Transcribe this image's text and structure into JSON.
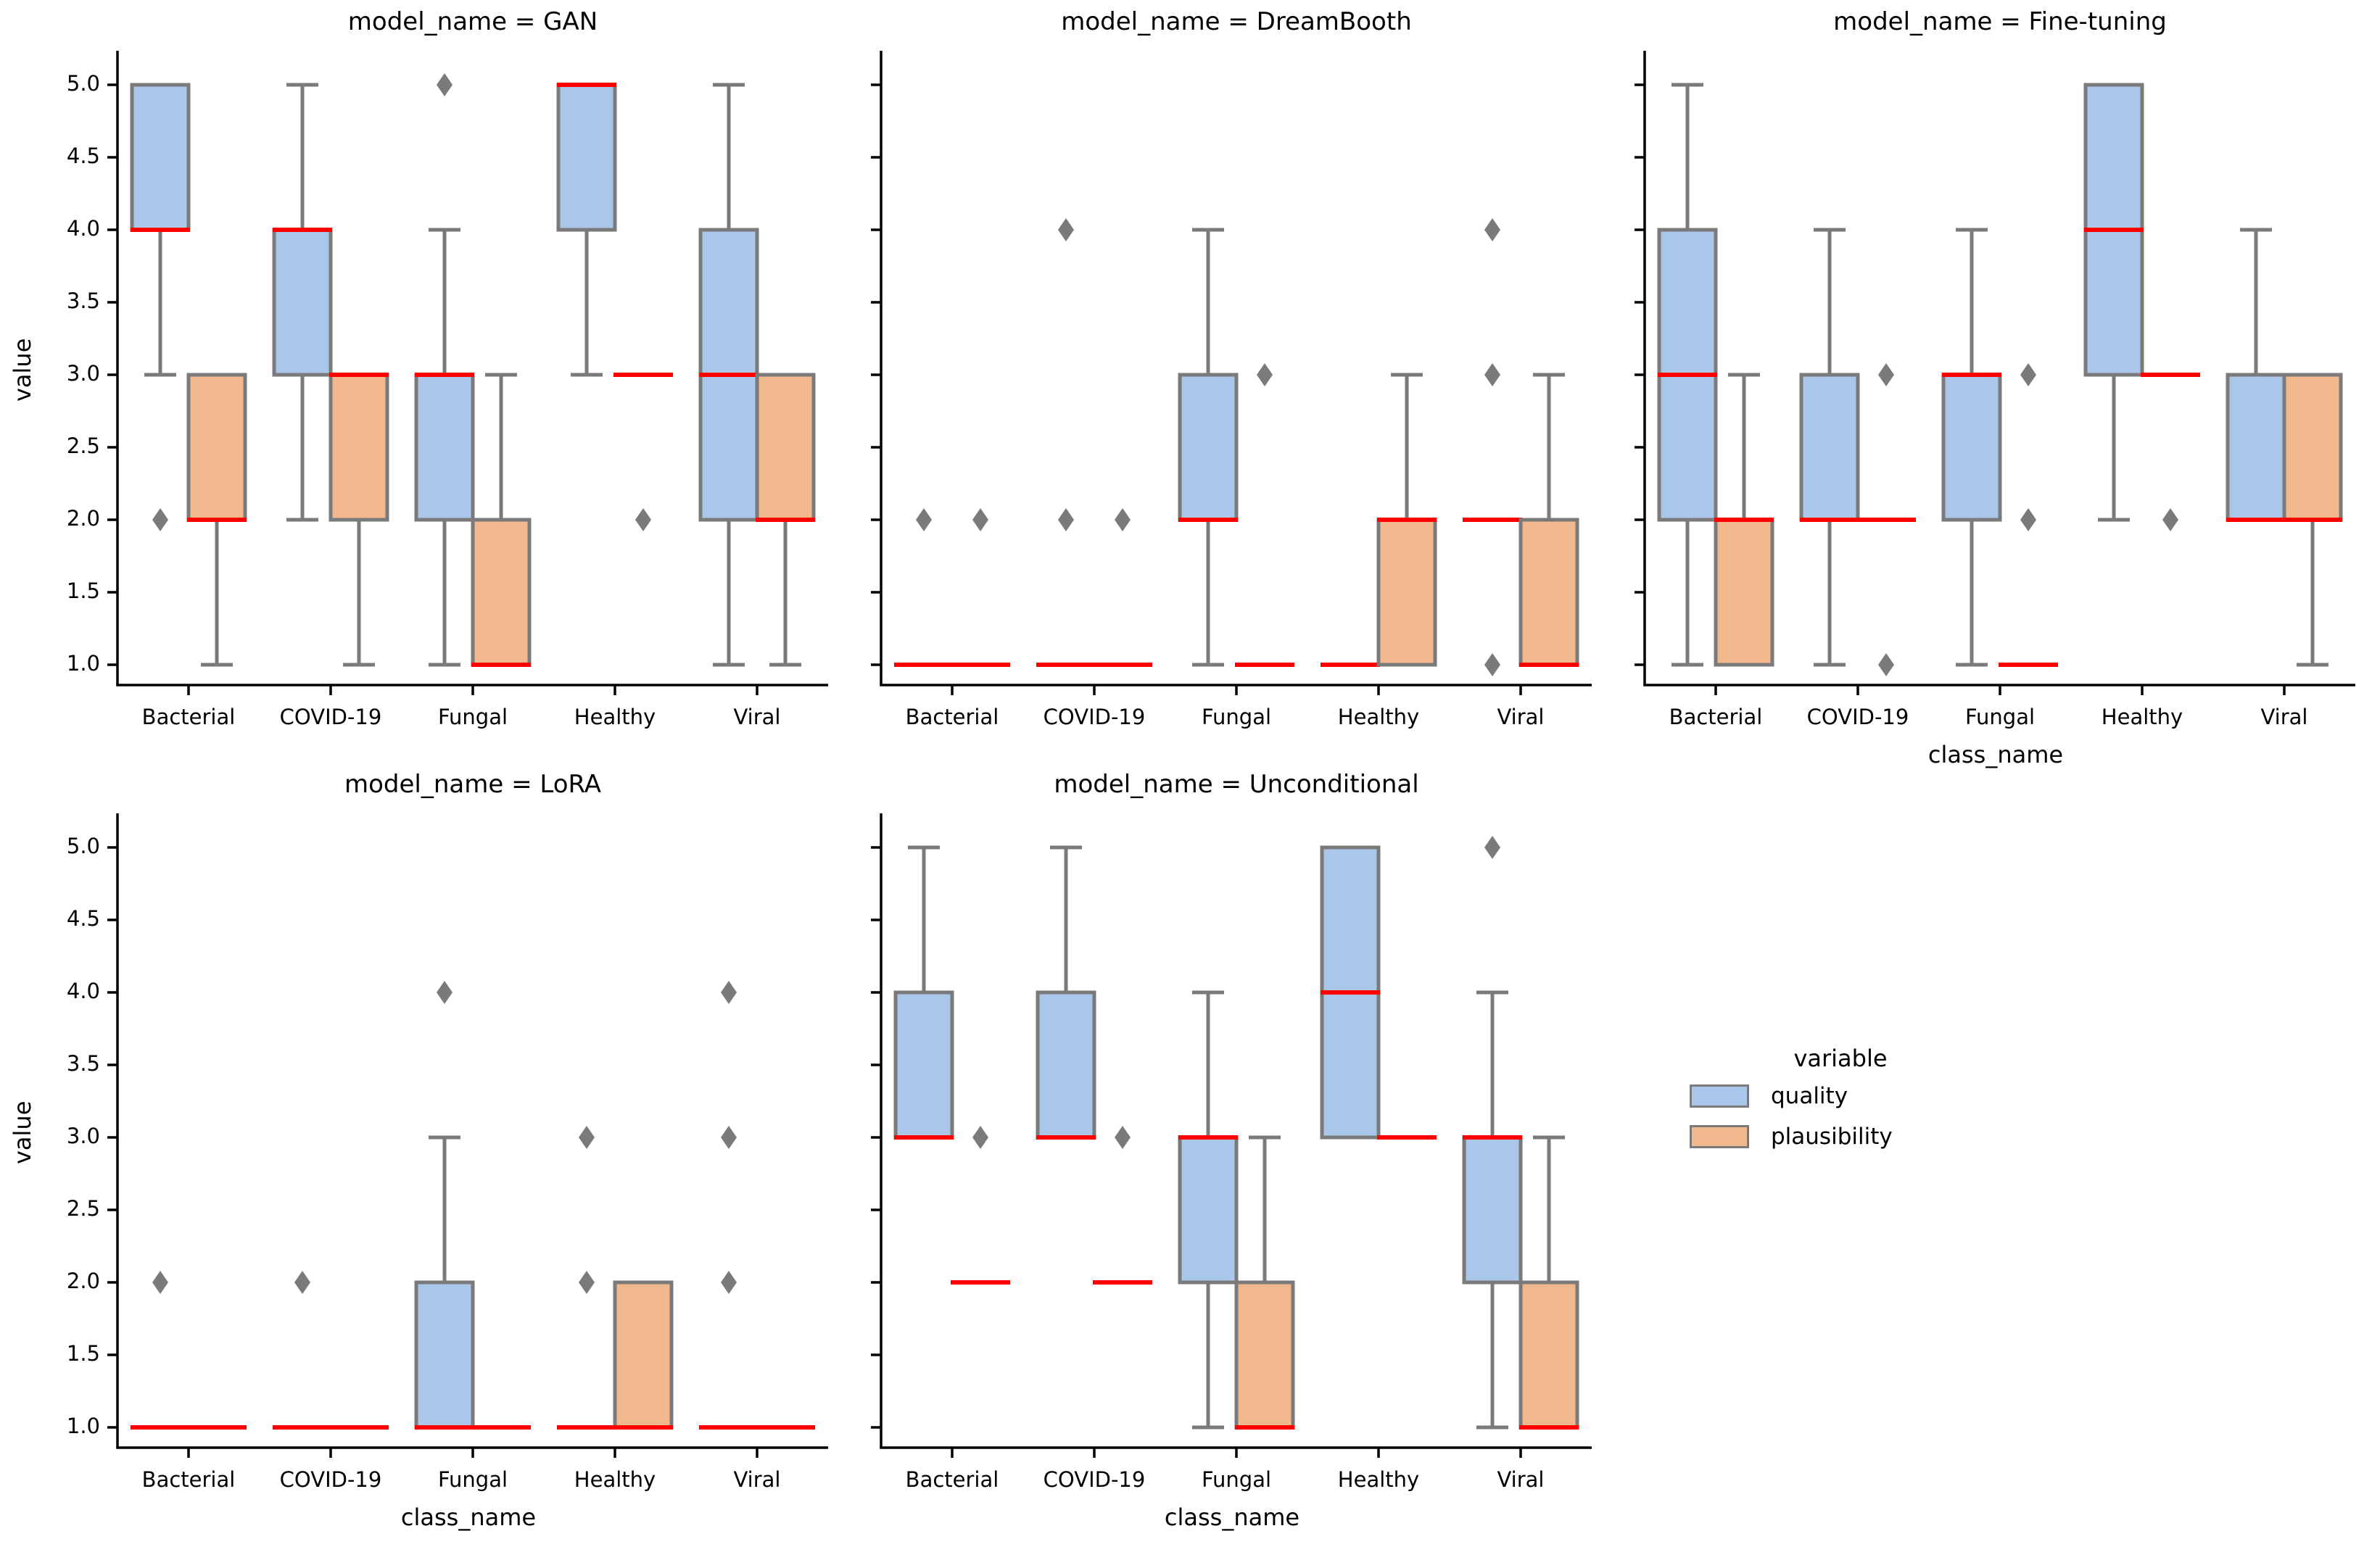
{
  "figure": {
    "ylabel": "value",
    "xlabel": "class_name",
    "categories": [
      "Bacterial",
      "COVID-19",
      "Fungal",
      "Healthy",
      "Viral"
    ],
    "ytick_labels": [
      "5.0",
      "4.5",
      "4.0",
      "3.5",
      "3.0",
      "2.5",
      "2.0",
      "1.5",
      "1.0"
    ],
    "ylim": [
      1,
      5
    ],
    "colors": {
      "quality": "#aac7e9",
      "plausibility": "#f1b88e",
      "median": "#ff0000",
      "box_edge": "#7a7a7a",
      "whisker": "#7a7a7a",
      "flier": "#7a7a7a",
      "spine": "#000000"
    },
    "legend": {
      "title": "variable",
      "entries": [
        {
          "label": "quality",
          "color": "#aac7e9"
        },
        {
          "label": "plausibility",
          "color": "#f1b88e"
        }
      ]
    }
  },
  "chart_data": [
    {
      "type": "grouped_boxplot",
      "title": "model_name = GAN",
      "grid": {
        "row": 0,
        "col": 0,
        "yticklabels": true,
        "xlabel": false
      },
      "categories": [
        "Bacterial",
        "COVID-19",
        "Fungal",
        "Healthy",
        "Viral"
      ],
      "series": [
        {
          "name": "quality",
          "color": "#aac7e9",
          "boxes": [
            {
              "q1": 4,
              "median": 4,
              "q3": 5,
              "whisker_low": 3,
              "whisker_high": 5,
              "fliers": [
                2
              ]
            },
            {
              "q1": 3,
              "median": 4,
              "q3": 4,
              "whisker_low": 2,
              "whisker_high": 5,
              "fliers": []
            },
            {
              "q1": 2,
              "median": 3,
              "q3": 3,
              "whisker_low": 1,
              "whisker_high": 4,
              "fliers": [
                5
              ]
            },
            {
              "q1": 4,
              "median": 5,
              "q3": 5,
              "whisker_low": 3,
              "whisker_high": 5,
              "fliers": []
            },
            {
              "q1": 2,
              "median": 3,
              "q3": 4,
              "whisker_low": 1,
              "whisker_high": 5,
              "fliers": []
            }
          ]
        },
        {
          "name": "plausibility",
          "color": "#f1b88e",
          "boxes": [
            {
              "q1": 2,
              "median": 2,
              "q3": 3,
              "whisker_low": 1,
              "whisker_high": 3,
              "fliers": []
            },
            {
              "q1": 2,
              "median": 3,
              "q3": 3,
              "whisker_low": 1,
              "whisker_high": 3,
              "fliers": []
            },
            {
              "q1": 1,
              "median": 1,
              "q3": 2,
              "whisker_low": 1,
              "whisker_high": 3,
              "fliers": []
            },
            {
              "q1": 3,
              "median": 3,
              "q3": 3,
              "whisker_low": 3,
              "whisker_high": 3,
              "fliers": [
                2
              ]
            },
            {
              "q1": 2,
              "median": 2,
              "q3": 3,
              "whisker_low": 1,
              "whisker_high": 3,
              "fliers": []
            }
          ]
        }
      ]
    },
    {
      "type": "grouped_boxplot",
      "title": "model_name = DreamBooth",
      "grid": {
        "row": 0,
        "col": 1,
        "yticklabels": false,
        "xlabel": false
      },
      "categories": [
        "Bacterial",
        "COVID-19",
        "Fungal",
        "Healthy",
        "Viral"
      ],
      "series": [
        {
          "name": "quality",
          "color": "#aac7e9",
          "boxes": [
            {
              "q1": 1,
              "median": 1,
              "q3": 1,
              "whisker_low": 1,
              "whisker_high": 1,
              "fliers": [
                2
              ]
            },
            {
              "q1": 1,
              "median": 1,
              "q3": 1,
              "whisker_low": 1,
              "whisker_high": 1,
              "fliers": [
                2,
                4
              ]
            },
            {
              "q1": 2,
              "median": 2,
              "q3": 3,
              "whisker_low": 1,
              "whisker_high": 4,
              "fliers": []
            },
            {
              "q1": 1,
              "median": 1,
              "q3": 1,
              "whisker_low": 1,
              "whisker_high": 1,
              "fliers": []
            },
            {
              "q1": 2,
              "median": 2,
              "q3": 2,
              "whisker_low": 2,
              "whisker_high": 2,
              "fliers": [
                1,
                3,
                4
              ]
            }
          ]
        },
        {
          "name": "plausibility",
          "color": "#f1b88e",
          "boxes": [
            {
              "q1": 1,
              "median": 1,
              "q3": 1,
              "whisker_low": 1,
              "whisker_high": 1,
              "fliers": [
                2
              ]
            },
            {
              "q1": 1,
              "median": 1,
              "q3": 1,
              "whisker_low": 1,
              "whisker_high": 1,
              "fliers": [
                2
              ]
            },
            {
              "q1": 1,
              "median": 1,
              "q3": 1,
              "whisker_low": 1,
              "whisker_high": 1,
              "fliers": [
                3
              ]
            },
            {
              "q1": 1,
              "median": 2,
              "q3": 2,
              "whisker_low": 1,
              "whisker_high": 3,
              "fliers": []
            },
            {
              "q1": 1,
              "median": 1,
              "q3": 2,
              "whisker_low": 1,
              "whisker_high": 3,
              "fliers": []
            }
          ]
        }
      ]
    },
    {
      "type": "grouped_boxplot",
      "title": "model_name = Fine-tuning",
      "grid": {
        "row": 0,
        "col": 2,
        "yticklabels": false,
        "xlabel": true
      },
      "categories": [
        "Bacterial",
        "COVID-19",
        "Fungal",
        "Healthy",
        "Viral"
      ],
      "series": [
        {
          "name": "quality",
          "color": "#aac7e9",
          "boxes": [
            {
              "q1": 2,
              "median": 3,
              "q3": 4,
              "whisker_low": 1,
              "whisker_high": 5,
              "fliers": []
            },
            {
              "q1": 2,
              "median": 2,
              "q3": 3,
              "whisker_low": 1,
              "whisker_high": 4,
              "fliers": []
            },
            {
              "q1": 2,
              "median": 3,
              "q3": 3,
              "whisker_low": 1,
              "whisker_high": 4,
              "fliers": []
            },
            {
              "q1": 3,
              "median": 4,
              "q3": 5,
              "whisker_low": 2,
              "whisker_high": 5,
              "fliers": []
            },
            {
              "q1": 2,
              "median": 2,
              "q3": 3,
              "whisker_low": 2,
              "whisker_high": 4,
              "fliers": []
            }
          ]
        },
        {
          "name": "plausibility",
          "color": "#f1b88e",
          "boxes": [
            {
              "q1": 1,
              "median": 2,
              "q3": 2,
              "whisker_low": 1,
              "whisker_high": 3,
              "fliers": []
            },
            {
              "q1": 2,
              "median": 2,
              "q3": 2,
              "whisker_low": 2,
              "whisker_high": 2,
              "fliers": [
                1,
                3
              ]
            },
            {
              "q1": 1,
              "median": 1,
              "q3": 1,
              "whisker_low": 1,
              "whisker_high": 1,
              "fliers": [
                2,
                3
              ]
            },
            {
              "q1": 3,
              "median": 3,
              "q3": 3,
              "whisker_low": 3,
              "whisker_high": 3,
              "fliers": [
                2
              ]
            },
            {
              "q1": 2,
              "median": 2,
              "q3": 3,
              "whisker_low": 1,
              "whisker_high": 3,
              "fliers": []
            }
          ]
        }
      ]
    },
    {
      "type": "grouped_boxplot",
      "title": "model_name = LoRA",
      "grid": {
        "row": 1,
        "col": 0,
        "yticklabels": true,
        "xlabel": true
      },
      "categories": [
        "Bacterial",
        "COVID-19",
        "Fungal",
        "Healthy",
        "Viral"
      ],
      "series": [
        {
          "name": "quality",
          "color": "#aac7e9",
          "boxes": [
            {
              "q1": 1,
              "median": 1,
              "q3": 1,
              "whisker_low": 1,
              "whisker_high": 1,
              "fliers": [
                2
              ]
            },
            {
              "q1": 1,
              "median": 1,
              "q3": 1,
              "whisker_low": 1,
              "whisker_high": 1,
              "fliers": [
                2
              ]
            },
            {
              "q1": 1,
              "median": 1,
              "q3": 2,
              "whisker_low": 1,
              "whisker_high": 3,
              "fliers": [
                4
              ]
            },
            {
              "q1": 1,
              "median": 1,
              "q3": 1,
              "whisker_low": 1,
              "whisker_high": 1,
              "fliers": [
                2,
                3
              ]
            },
            {
              "q1": 1,
              "median": 1,
              "q3": 1,
              "whisker_low": 1,
              "whisker_high": 1,
              "fliers": [
                2,
                3,
                4
              ]
            }
          ]
        },
        {
          "name": "plausibility",
          "color": "#f1b88e",
          "boxes": [
            {
              "q1": 1,
              "median": 1,
              "q3": 1,
              "whisker_low": 1,
              "whisker_high": 1,
              "fliers": []
            },
            {
              "q1": 1,
              "median": 1,
              "q3": 1,
              "whisker_low": 1,
              "whisker_high": 1,
              "fliers": []
            },
            {
              "q1": 1,
              "median": 1,
              "q3": 1,
              "whisker_low": 1,
              "whisker_high": 1,
              "fliers": []
            },
            {
              "q1": 1,
              "median": 1,
              "q3": 2,
              "whisker_low": 1,
              "whisker_high": 2,
              "fliers": []
            },
            {
              "q1": 1,
              "median": 1,
              "q3": 1,
              "whisker_low": 1,
              "whisker_high": 1,
              "fliers": []
            }
          ]
        }
      ]
    },
    {
      "type": "grouped_boxplot",
      "title": "model_name = Unconditional",
      "grid": {
        "row": 1,
        "col": 1,
        "yticklabels": false,
        "xlabel": true
      },
      "categories": [
        "Bacterial",
        "COVID-19",
        "Fungal",
        "Healthy",
        "Viral"
      ],
      "series": [
        {
          "name": "quality",
          "color": "#aac7e9",
          "boxes": [
            {
              "q1": 3,
              "median": 3,
              "q3": 4,
              "whisker_low": 3,
              "whisker_high": 5,
              "fliers": []
            },
            {
              "q1": 3,
              "median": 3,
              "q3": 4,
              "whisker_low": 3,
              "whisker_high": 5,
              "fliers": []
            },
            {
              "q1": 2,
              "median": 3,
              "q3": 3,
              "whisker_low": 1,
              "whisker_high": 4,
              "fliers": []
            },
            {
              "q1": 3,
              "median": 4,
              "q3": 5,
              "whisker_low": 3,
              "whisker_high": 5,
              "fliers": []
            },
            {
              "q1": 2,
              "median": 3,
              "q3": 3,
              "whisker_low": 1,
              "whisker_high": 4,
              "fliers": [
                5
              ]
            }
          ]
        },
        {
          "name": "plausibility",
          "color": "#f1b88e",
          "boxes": [
            {
              "q1": 2,
              "median": 2,
              "q3": 2,
              "whisker_low": 2,
              "whisker_high": 2,
              "fliers": [
                3
              ]
            },
            {
              "q1": 2,
              "median": 2,
              "q3": 2,
              "whisker_low": 2,
              "whisker_high": 2,
              "fliers": [
                3
              ]
            },
            {
              "q1": 1,
              "median": 1,
              "q3": 2,
              "whisker_low": 1,
              "whisker_high": 3,
              "fliers": []
            },
            {
              "q1": 3,
              "median": 3,
              "q3": 3,
              "whisker_low": 3,
              "whisker_high": 3,
              "fliers": []
            },
            {
              "q1": 1,
              "median": 1,
              "q3": 2,
              "whisker_low": 1,
              "whisker_high": 3,
              "fliers": []
            }
          ]
        }
      ]
    }
  ]
}
